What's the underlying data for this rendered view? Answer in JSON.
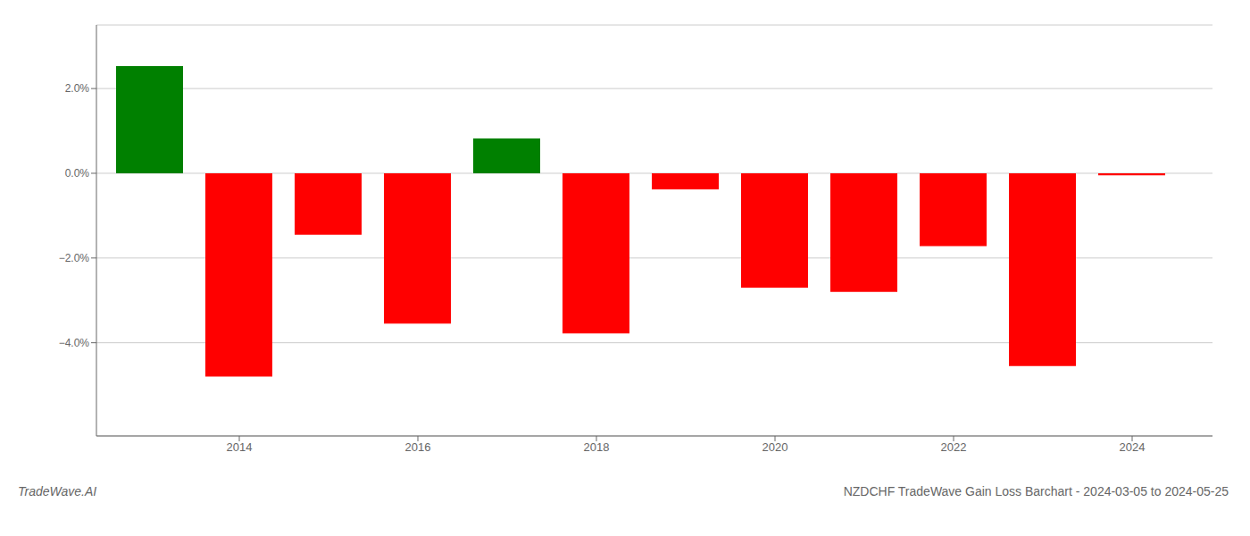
{
  "chart_data": {
    "type": "bar",
    "title": "NZDCHF TradeWave Gain Loss Barchart - 2024-03-05 to 2024-05-25",
    "annotations": [
      "TradeWave.AI"
    ],
    "x": [
      2013,
      2014,
      2015,
      2016,
      2017,
      2018,
      2019,
      2020,
      2021,
      2022,
      2023,
      2024
    ],
    "values": [
      2.53,
      -4.8,
      -1.45,
      -3.55,
      0.82,
      -3.78,
      -0.38,
      -2.7,
      -2.8,
      -1.72,
      -4.55,
      -0.05
    ],
    "colors": [
      "#008000",
      "#ff0000",
      "#ff0000",
      "#ff0000",
      "#008000",
      "#ff0000",
      "#ff0000",
      "#ff0000",
      "#ff0000",
      "#ff0000",
      "#ff0000",
      "#ff0000"
    ],
    "xlim": [
      2012.4,
      2024.9
    ],
    "xticks": [
      2014,
      2016,
      2018,
      2020,
      2022,
      2024
    ],
    "ylim": [
      -6.2,
      3.5
    ],
    "yticks": [
      {
        "value": -4.0,
        "label": "−4.0%"
      },
      {
        "value": -2.0,
        "label": "−2.0%"
      },
      {
        "value": 0.0,
        "label": "0.0%"
      },
      {
        "value": 2.0,
        "label": "2.0%"
      }
    ],
    "grid": true
  }
}
